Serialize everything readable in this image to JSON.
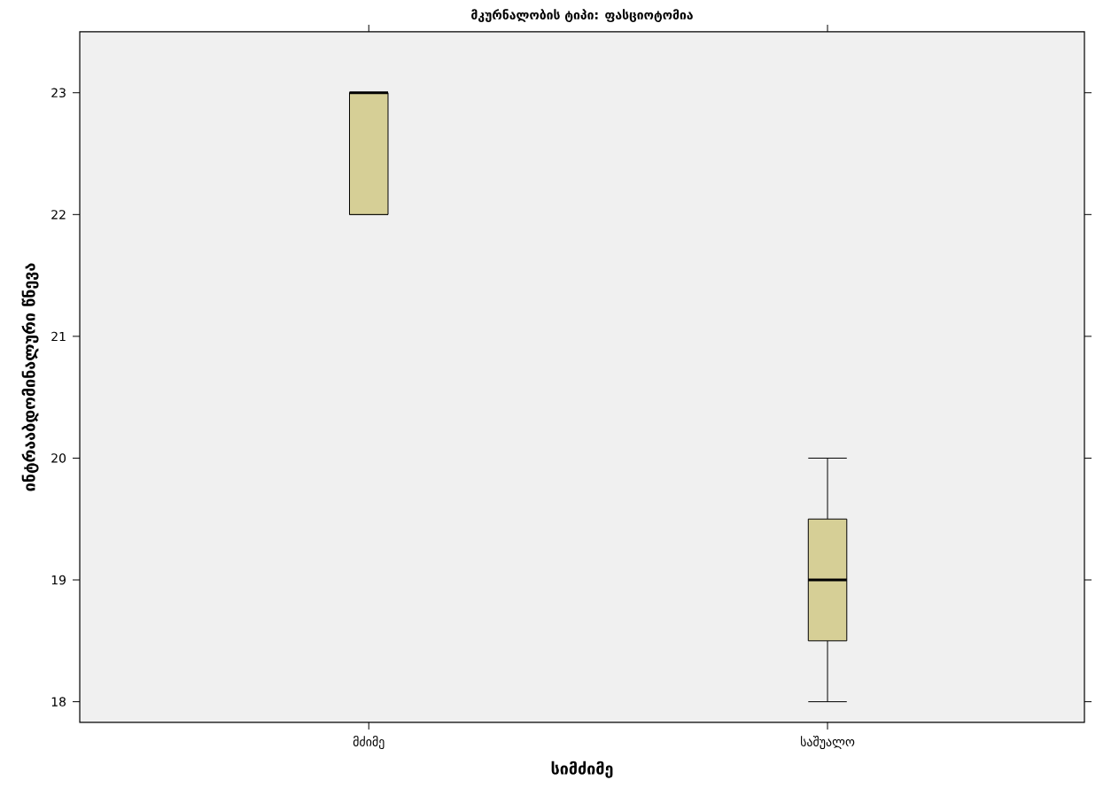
{
  "chart_data": {
    "type": "box",
    "title": "მკურნალობის ტიპი: ფასციოტომია",
    "xlabel": "სიმძიმე",
    "ylabel": "ინტრააბდომინალური წნევა",
    "categories": [
      "მძიმე",
      "საშუალო"
    ],
    "color": "#d6cf96",
    "boxes": [
      {
        "low": 22,
        "q1": 22,
        "median": 23,
        "q3": 23,
        "high": 23
      },
      {
        "low": 18,
        "q1": 18.5,
        "median": 19,
        "q3": 19.5,
        "high": 20
      }
    ],
    "ylim": [
      17.83,
      23.5
    ],
    "yticks": [
      18,
      19,
      20,
      21,
      22,
      23
    ],
    "grid": false
  }
}
